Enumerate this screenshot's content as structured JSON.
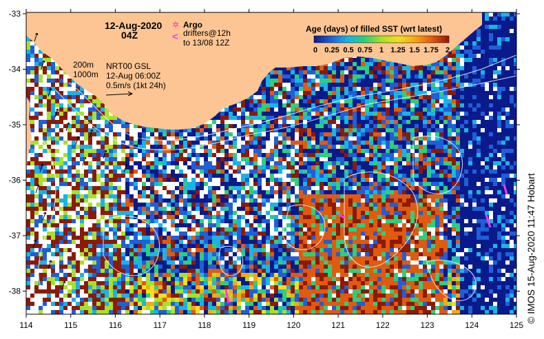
{
  "map": {
    "title_date": "12-Aug-2020",
    "title_time": "04Z",
    "argo_label": "Argo",
    "drifter_label_1": "drifters@12h",
    "drifter_label_2": "to 13/08 12Z",
    "depth_200": "200m",
    "depth_1000": "1000m",
    "product_1": "NRT00 GSL",
    "product_2": "12-Aug 06:00Z",
    "scale_label": "0.5m/s (1kt 24h)",
    "colorbar_title": "Age (days) of filled SST (wrt latest)",
    "colorbar_ticks": [
      "0",
      "0.25",
      "0.5",
      "0.75",
      "1",
      "1.25",
      "1.5",
      "1.75",
      "2"
    ],
    "colorbar_colors": [
      "#0a1a8a",
      "#1f5fd8",
      "#19b4e6",
      "#2ecf7a",
      "#a8e02a",
      "#f0e020",
      "#f5a818",
      "#e05a10",
      "#8c1a08"
    ],
    "credit": "© IMOS 15-Aug-2020 11:47 Hobart",
    "x_ticks": [
      "114",
      "115",
      "116",
      "117",
      "118",
      "119",
      "120",
      "121",
      "122",
      "123",
      "124",
      "125"
    ],
    "y_ticks": [
      "-33",
      "-34",
      "-35",
      "-36",
      "-37",
      "-38"
    ],
    "land_color": "#fcc593",
    "argo_color": "#ff33cc",
    "drifter_color": "#ff33ff"
  }
}
